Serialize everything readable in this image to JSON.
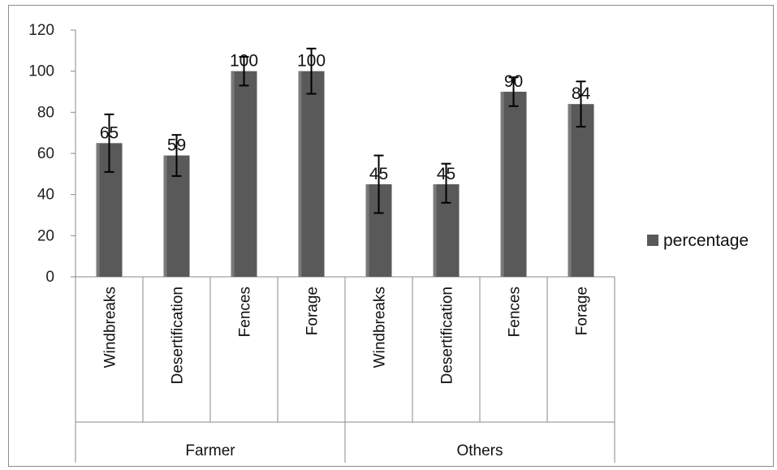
{
  "chart_data": {
    "type": "bar",
    "title": "",
    "xlabel": "",
    "ylabel": "",
    "ylim": [
      0,
      120
    ],
    "yticks": [
      0,
      20,
      40,
      60,
      80,
      100,
      120
    ],
    "grid": false,
    "legend_position": "right",
    "groups": [
      {
        "name": "Farmer",
        "categories": [
          "Windbreaks",
          "Desertification",
          "Fences",
          "Forage"
        ]
      },
      {
        "name": "Others",
        "categories": [
          "Windbreaks",
          "Desertification",
          "Fences",
          "Forage"
        ]
      }
    ],
    "series": [
      {
        "name": "percentage",
        "color": "#595959",
        "values": [
          65,
          59,
          100,
          100,
          45,
          45,
          90,
          84
        ],
        "data_labels": [
          "65",
          "59",
          "100",
          "100",
          "45",
          "45",
          "90",
          "84"
        ],
        "error_bars": [
          {
            "low": 51,
            "high": 79
          },
          {
            "low": 49,
            "high": 69
          },
          {
            "low": 93,
            "high": 107
          },
          {
            "low": 89,
            "high": 111
          },
          {
            "low": 31,
            "high": 59
          },
          {
            "low": 36,
            "high": 55
          },
          {
            "low": 83,
            "high": 97
          },
          {
            "low": 73,
            "high": 95
          }
        ]
      }
    ]
  }
}
